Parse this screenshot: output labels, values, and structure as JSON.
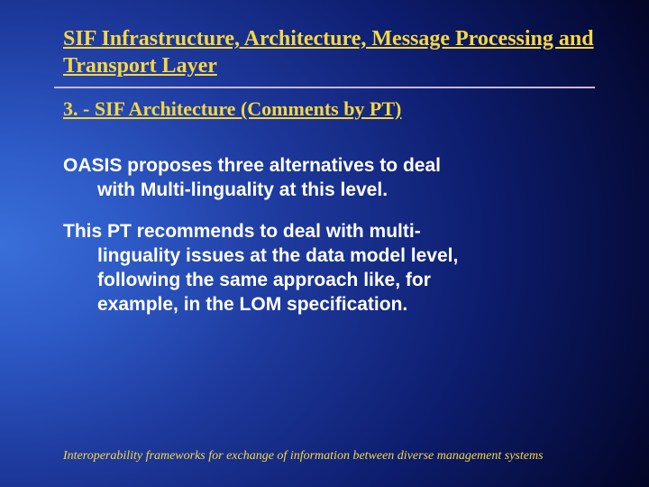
{
  "title_text": "SIF Infrastructure, Architecture, Message Processing and Transport Layer",
  "title_fontsize": "24px",
  "title_color": "#f5d742",
  "subtitle_text": "3. - SIF Architecture (Comments by PT)",
  "subtitle_fontsize": "22px",
  "subtitle_color": "#f5d742",
  "para1_line1": "OASIS proposes three alternatives to deal",
  "para1_line2": "with Multi-linguality at this level.",
  "para2_line1": "This PT recommends to deal with multi-",
  "para2_line2": "linguality issues at the data model level,",
  "para2_line3": "following the same approach like, for",
  "para2_line4": "example, in the LOM specification.",
  "body_fontsize": "21px",
  "body_color": "#ffffff",
  "footer_text": "Interoperability frameworks for exchange of information between diverse management systems",
  "footer_fontsize": "14px",
  "footer_color": "#f5d742",
  "divider_color": "#c9b8d8",
  "background_gradient_inner": "#3a6fd8",
  "background_gradient_outer": "#000000"
}
